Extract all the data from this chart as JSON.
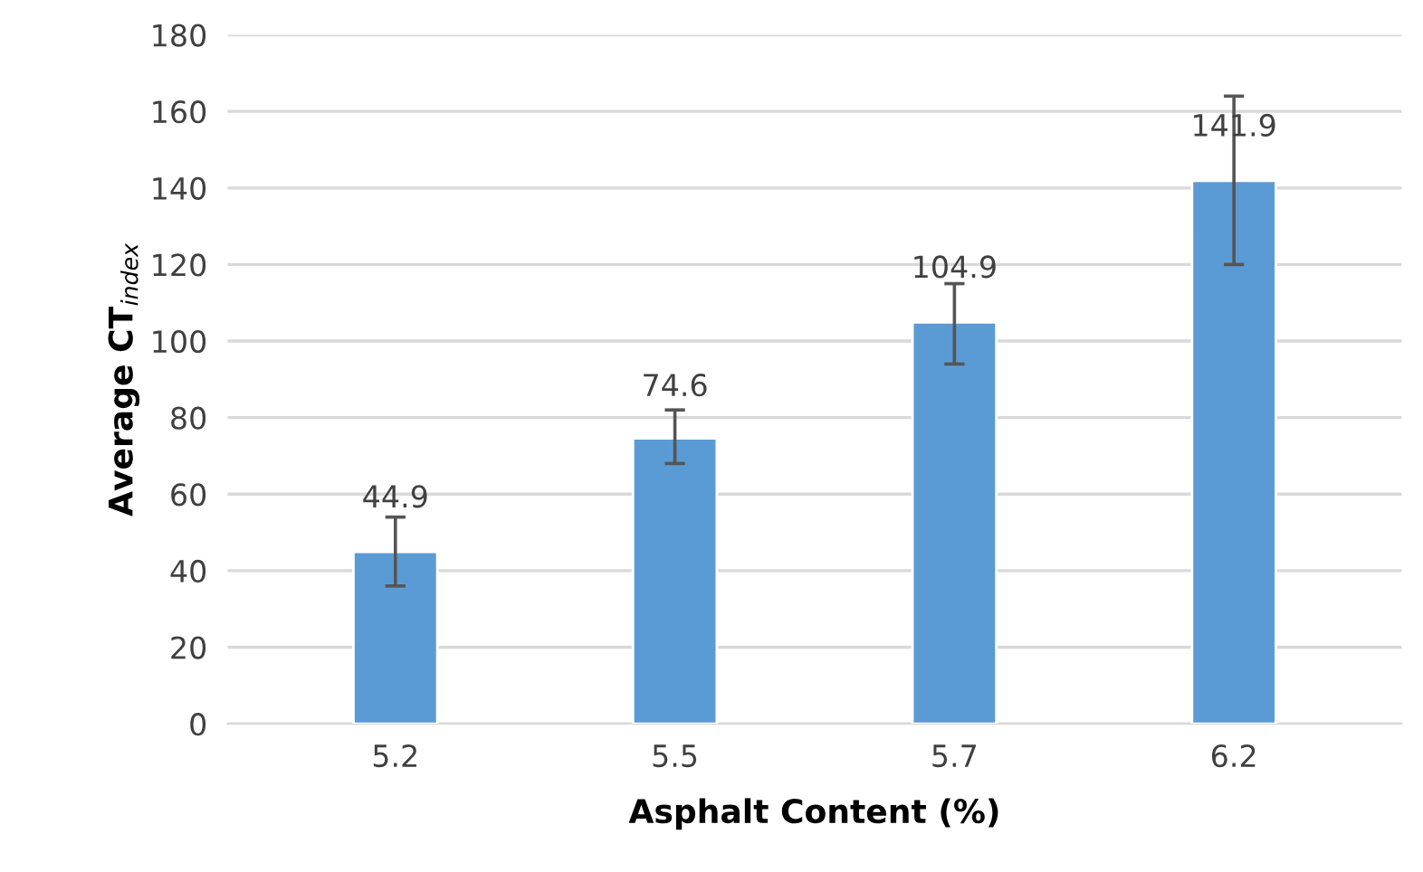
{
  "chart_data": {
    "type": "bar",
    "xlabel": "Asphalt Content (%)",
    "ylabel": "Average CT$_{index}$",
    "categories": [
      "5.2",
      "5.5",
      "5.7",
      "6.2"
    ],
    "values": [
      44.9,
      74.6,
      104.9,
      141.9
    ],
    "errors": [
      [
        36,
        54
      ],
      [
        68,
        82
      ],
      [
        94,
        115
      ],
      [
        120,
        164
      ]
    ],
    "color": "#5b9bd5",
    "ylim": [
      0,
      180
    ],
    "yticks": [
      0,
      20,
      40,
      60,
      80,
      100,
      120,
      140,
      160,
      180
    ],
    "grid": "y",
    "data_labels": true,
    "legend": false
  }
}
